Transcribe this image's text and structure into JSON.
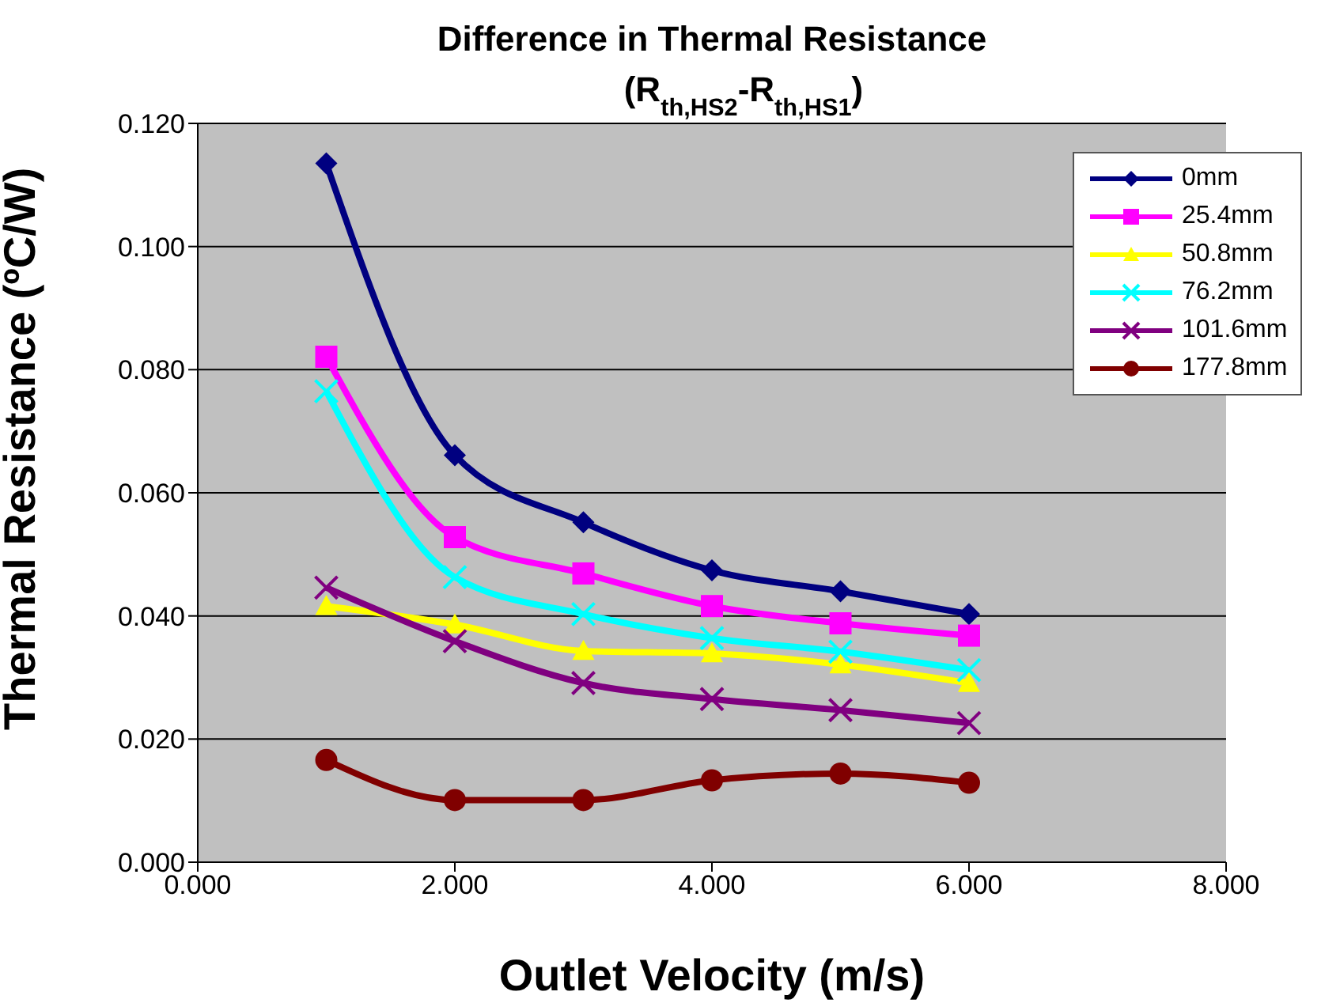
{
  "chart_data": {
    "type": "line",
    "title": "Difference in Thermal Resistance",
    "subtitle": "(R$_{th,HS2}$-R$_{th,HS1}$)",
    "xlabel": "Outlet Velocity (m/s)",
    "ylabel": "Thermal Resistance (ºC/W)",
    "x": [
      1,
      2,
      3,
      4,
      5,
      6
    ],
    "xlim": [
      0,
      8
    ],
    "xticks": [
      {
        "value": 0,
        "label": "0.000"
      },
      {
        "value": 2,
        "label": "2.000"
      },
      {
        "value": 4,
        "label": "4.000"
      },
      {
        "value": 6,
        "label": "6.000"
      },
      {
        "value": 8,
        "label": "8.000"
      }
    ],
    "ylim": [
      0,
      0.12
    ],
    "yticks": [
      {
        "value": 0,
        "label": "0.000"
      },
      {
        "value": 0.02,
        "label": "0.020"
      },
      {
        "value": 0.04,
        "label": "0.040"
      },
      {
        "value": 0.06,
        "label": "0.060"
      },
      {
        "value": 0.08,
        "label": "0.080"
      },
      {
        "value": 0.1,
        "label": "0.100"
      },
      {
        "value": 0.12,
        "label": "0.120"
      }
    ],
    "grid": "y",
    "legend": "top right",
    "series": [
      {
        "name": "0mm",
        "color": "#000080",
        "marker": "diamond",
        "values": [
          0.1135,
          0.0661,
          0.0552,
          0.0474,
          0.044,
          0.0403
        ]
      },
      {
        "name": "25.4mm",
        "color": "#ff00ff",
        "marker": "square",
        "values": [
          0.0821,
          0.0528,
          0.0469,
          0.0416,
          0.0388,
          0.0368
        ]
      },
      {
        "name": "50.8mm",
        "color": "#ffff00",
        "marker": "triangle",
        "values": [
          0.0416,
          0.0386,
          0.0343,
          0.0339,
          0.0321,
          0.0291
        ]
      },
      {
        "name": "76.2mm",
        "color": "#00ffff",
        "marker": "cross",
        "values": [
          0.0765,
          0.0463,
          0.0403,
          0.0364,
          0.0342,
          0.0312
        ]
      },
      {
        "name": "101.6mm",
        "color": "#800080",
        "marker": "cross",
        "values": [
          0.0446,
          0.0359,
          0.0291,
          0.0265,
          0.0247,
          0.0226
        ]
      },
      {
        "name": "177.8mm",
        "color": "#800000",
        "marker": "circle",
        "values": [
          0.0166,
          0.0101,
          0.0101,
          0.0133,
          0.0144,
          0.0129
        ]
      }
    ]
  }
}
